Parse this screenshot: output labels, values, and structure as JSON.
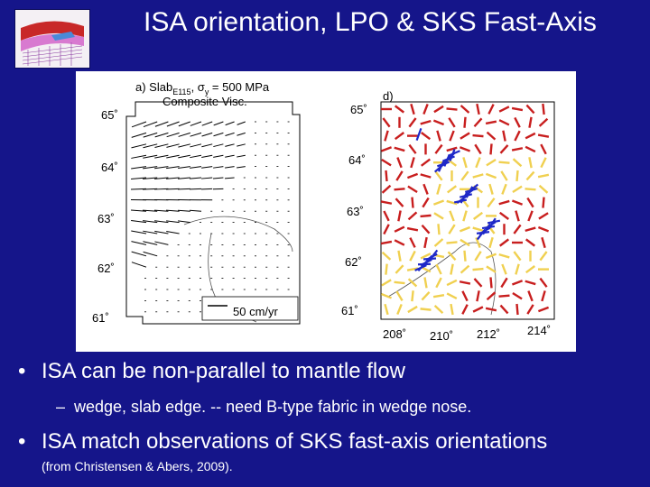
{
  "slide": {
    "title": "ISA orientation, LPO & SKS Fast-Axis",
    "bullets": [
      {
        "text": "ISA can be non-parallel to mantle flow",
        "subitems": [
          "wedge, slab edge.  -- need B-type fabric in wedge nose."
        ]
      },
      {
        "text": "ISA match observations of SKS fast-axis orientations",
        "subitems": []
      }
    ],
    "citation": "(from Christensen & Abers, 2009)."
  },
  "figure": {
    "panel_a": {
      "label": "a) Slab",
      "subscript": "E115",
      "label_suffix": ", σ",
      "sigma_subscript": "y",
      "label_value": " = 500 MPa",
      "line2": "Composite Visc.",
      "lat_ticks": [
        "65˚",
        "64˚",
        "63˚",
        "62˚",
        "61˚"
      ],
      "scale_label": "50 cm/yr"
    },
    "panel_d": {
      "label": "d)",
      "lat_ticks": [
        "65˚",
        "64˚",
        "63˚",
        "62˚",
        "61˚"
      ],
      "lon_ticks": [
        "208˚",
        "210˚",
        "212˚",
        "214˚"
      ]
    }
  },
  "colors": {
    "background": "#15158a",
    "text": "#ffffff",
    "fast_axis_red": "#c81e1e",
    "fast_axis_yellow": "#f0d050",
    "observation_blue": "#1e28c8"
  }
}
